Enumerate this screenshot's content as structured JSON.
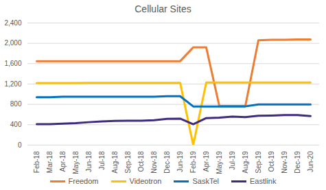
{
  "chart_data": {
    "type": "line",
    "title": "Cellular Sites",
    "categories": [
      "Feb-18",
      "Mar-18",
      "Apr-18",
      "May-18",
      "Jun-18",
      "Jul-18",
      "Aug-18",
      "Sep-18",
      "Oct-18",
      "Nov-18",
      "Dec-18",
      "Jun-19",
      "Feb-19",
      "Apr-19",
      "May-19",
      "Jul-19",
      "Aug-19",
      "Sep-19",
      "Oct-19",
      "Nov-19",
      "Dec-19",
      "Jun-20"
    ],
    "series": [
      {
        "name": "Freedom",
        "color": "#ED7D31",
        "values": [
          1650,
          1650,
          1650,
          1650,
          1650,
          1650,
          1650,
          1650,
          1650,
          1650,
          1650,
          1650,
          1920,
          1920,
          770,
          770,
          770,
          2060,
          2070,
          2070,
          2075,
          2075
        ]
      },
      {
        "name": "Videotron",
        "color": "#FFC000",
        "values": [
          1220,
          1220,
          1220,
          1220,
          1225,
          1225,
          1225,
          1225,
          1225,
          1225,
          1225,
          1225,
          0,
          1230,
          1230,
          1230,
          1230,
          1230,
          1230,
          1230,
          1230,
          1230
        ]
      },
      {
        "name": "SaskTel",
        "color": "#0070C0",
        "values": [
          940,
          940,
          950,
          950,
          950,
          950,
          950,
          950,
          950,
          950,
          960,
          960,
          760,
          760,
          760,
          760,
          760,
          800,
          800,
          800,
          800,
          800
        ]
      },
      {
        "name": "Eastlink",
        "color": "#3F2B7E",
        "values": [
          410,
          410,
          420,
          430,
          450,
          465,
          475,
          480,
          480,
          490,
          515,
          520,
          410,
          530,
          540,
          560,
          550,
          575,
          580,
          590,
          590,
          570
        ]
      }
    ],
    "ylim": [
      0,
      2400
    ],
    "yticks": [
      0,
      400,
      800,
      1200,
      1600,
      2000,
      2400
    ],
    "grid": true,
    "legend": "bottom"
  }
}
